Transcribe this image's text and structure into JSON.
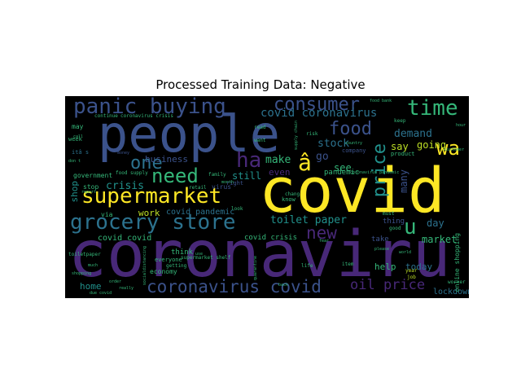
{
  "figure": {
    "title": "Processed Training Data: Negative"
  },
  "wordcloud": {
    "words": [
      {
        "text": "coronaviru",
        "color": "#482878"
      },
      {
        "text": "covid",
        "color": "#fde725"
      },
      {
        "text": "people",
        "color": "#3b528b"
      },
      {
        "text": "supermarket",
        "color": "#fde725"
      },
      {
        "text": "grocery store",
        "color": "#2c728e"
      },
      {
        "text": "panic buying",
        "color": "#3b528b"
      },
      {
        "text": "coronavirus covid",
        "color": "#3b528b"
      },
      {
        "text": "consumer",
        "color": "#3b528b"
      },
      {
        "text": "food",
        "color": "#3b528b"
      },
      {
        "text": "time",
        "color": "#35b779"
      },
      {
        "text": "price",
        "color": "#21918c"
      },
      {
        "text": "wa",
        "color": "#fde725"
      },
      {
        "text": "ha",
        "color": "#482878"
      },
      {
        "text": "â",
        "color": "#fde725"
      },
      {
        "text": "need",
        "color": "#35b779"
      },
      {
        "text": "one",
        "color": "#2c728e"
      },
      {
        "text": "new",
        "color": "#482878"
      },
      {
        "text": "u",
        "color": "#35b779"
      },
      {
        "text": "oil price",
        "color": "#482878"
      },
      {
        "text": "covid coronavirus",
        "color": "#2c728e"
      },
      {
        "text": "toilet paper",
        "color": "#21918c"
      },
      {
        "text": "market",
        "color": "#35b779"
      },
      {
        "text": "demand",
        "color": "#2c728e"
      },
      {
        "text": "going",
        "color": "#bddf26"
      },
      {
        "text": "stock",
        "color": "#2c728e"
      },
      {
        "text": "see",
        "color": "#35b779"
      },
      {
        "text": "make",
        "color": "#35b779"
      },
      {
        "text": "crisis",
        "color": "#21918c"
      },
      {
        "text": "still",
        "color": "#21918c"
      },
      {
        "text": "go",
        "color": "#3b528b"
      },
      {
        "text": "say",
        "color": "#bddf26"
      },
      {
        "text": "day",
        "color": "#2c728e"
      },
      {
        "text": "many",
        "color": "#3b528b"
      },
      {
        "text": "today",
        "color": "#2c728e"
      },
      {
        "text": "help",
        "color": "#35b779"
      },
      {
        "text": "home",
        "color": "#21918c"
      },
      {
        "text": "lockdown",
        "color": "#2c728e"
      },
      {
        "text": "shop",
        "color": "#21918c"
      },
      {
        "text": "work",
        "color": "#bddf26"
      },
      {
        "text": "business",
        "color": "#3b528b"
      },
      {
        "text": "even",
        "color": "#482878"
      },
      {
        "text": "covid pandemic",
        "color": "#2c728e"
      },
      {
        "text": "covid covid",
        "color": "#35b779"
      },
      {
        "text": "covid crisis",
        "color": "#35b779"
      },
      {
        "text": "take",
        "color": "#3b528b"
      },
      {
        "text": "thing",
        "color": "#3b528b"
      },
      {
        "text": "think",
        "color": "#35b779"
      },
      {
        "text": "online shopping",
        "color": "#35b779"
      },
      {
        "text": "pandemic",
        "color": "#35b779"
      },
      {
        "text": "via",
        "color": "#35b779"
      },
      {
        "text": "stop",
        "color": "#35b779"
      },
      {
        "text": "government",
        "color": "#35b779"
      },
      {
        "text": "may",
        "color": "#35b779"
      },
      {
        "text": "itâ s",
        "color": "#2c728e"
      },
      {
        "text": "virus",
        "color": "#3b528b"
      },
      {
        "text": "economy",
        "color": "#35b779"
      },
      {
        "text": "supermarket shelf",
        "color": "#35b779"
      },
      {
        "text": "food supply",
        "color": "#35b779"
      },
      {
        "text": "company",
        "color": "#3b528b"
      },
      {
        "text": "product",
        "color": "#35b779"
      },
      {
        "text": "week",
        "color": "#35b779"
      },
      {
        "text": "don t",
        "color": "#35b779"
      },
      {
        "text": "everyone",
        "color": "#35b779"
      },
      {
        "text": "coronavirus crisis",
        "color": "#35b779"
      },
      {
        "text": "job",
        "color": "#bddf26"
      },
      {
        "text": "year",
        "color": "#bddf26"
      },
      {
        "text": "must",
        "color": "#35b779"
      },
      {
        "text": "good",
        "color": "#35b779"
      },
      {
        "text": "world",
        "color": "#35b779"
      },
      {
        "text": "worker",
        "color": "#35b779"
      },
      {
        "text": "keep",
        "color": "#35b779"
      },
      {
        "text": "customer",
        "color": "#35b779"
      },
      {
        "text": "country",
        "color": "#35b779"
      },
      {
        "text": "retail",
        "color": "#35b779"
      },
      {
        "text": "family",
        "color": "#35b779"
      },
      {
        "text": "want",
        "color": "#35b779"
      },
      {
        "text": "right",
        "color": "#3b528b"
      },
      {
        "text": "look",
        "color": "#35b779"
      },
      {
        "text": "continue",
        "color": "#35b779"
      },
      {
        "text": "money",
        "color": "#3b528b"
      },
      {
        "text": "read",
        "color": "#35b779"
      },
      {
        "text": "report",
        "color": "#35b779"
      },
      {
        "text": "toiletpaper",
        "color": "#35b779"
      },
      {
        "text": "shopping",
        "color": "#35b779"
      },
      {
        "text": "much",
        "color": "#35b779"
      },
      {
        "text": "getting",
        "color": "#35b779"
      },
      {
        "text": "order",
        "color": "#35b779"
      },
      {
        "text": "due covid",
        "color": "#35b779"
      },
      {
        "text": "really",
        "color": "#35b779"
      },
      {
        "text": "life",
        "color": "#35b779"
      },
      {
        "text": "back",
        "color": "#35b779"
      },
      {
        "text": "item",
        "color": "#35b779"
      },
      {
        "text": "please",
        "color": "#35b779"
      },
      {
        "text": "hour",
        "color": "#35b779"
      },
      {
        "text": "call",
        "color": "#35b779"
      },
      {
        "text": "month",
        "color": "#35b779"
      },
      {
        "text": "risk",
        "color": "#35b779"
      },
      {
        "text": "socialdistancing",
        "color": "#35b779"
      },
      {
        "text": "quarantine",
        "color": "#35b779"
      },
      {
        "text": "supply chain",
        "color": "#35b779"
      },
      {
        "text": "food bank",
        "color": "#35b779"
      },
      {
        "text": "coronavirus pandemic",
        "color": "#35b779"
      },
      {
        "text": "know",
        "color": "#35b779"
      },
      {
        "text": "use",
        "color": "#35b779"
      },
      {
        "text": "chang",
        "color": "#35b779"
      },
      {
        "text": "fear",
        "color": "#35b779"
      }
    ]
  }
}
